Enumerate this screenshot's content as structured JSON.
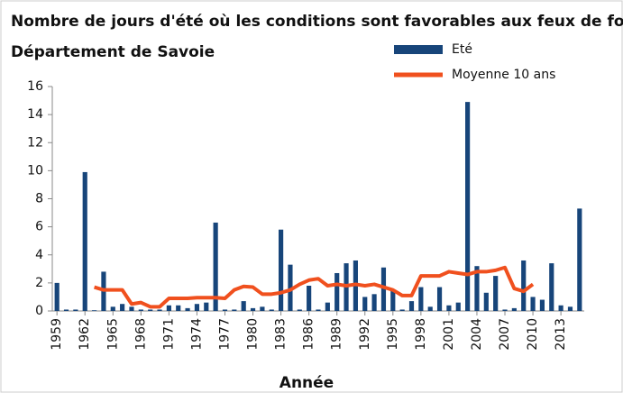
{
  "chart_data": {
    "type": "bar",
    "title": "Nombre de jours d'été où les conditions sont favorables aux feux de forêt",
    "subtitle": "Département de Savoie",
    "xlabel": "Année",
    "x": [
      1959,
      1960,
      1961,
      1962,
      1963,
      1964,
      1965,
      1966,
      1967,
      1968,
      1969,
      1970,
      1971,
      1972,
      1973,
      1974,
      1975,
      1976,
      1977,
      1978,
      1979,
      1980,
      1981,
      1982,
      1983,
      1984,
      1985,
      1986,
      1987,
      1988,
      1989,
      1990,
      1991,
      1992,
      1993,
      1994,
      1995,
      1996,
      1997,
      1998,
      1999,
      2000,
      2001,
      2002,
      2003,
      2004,
      2005,
      2006,
      2007,
      2008,
      2009,
      2010,
      2011,
      2012,
      2013,
      2014,
      2015
    ],
    "series": [
      {
        "name": "Eté",
        "color": "#17457a",
        "values": [
          2.0,
          0.1,
          0.1,
          9.9,
          0.05,
          2.8,
          0.3,
          0.5,
          0.3,
          0.1,
          0.1,
          0.1,
          0.4,
          0.4,
          0.2,
          0.5,
          0.6,
          6.3,
          0.1,
          0.1,
          0.7,
          0.2,
          0.3,
          0.1,
          5.8,
          3.3,
          0.1,
          1.8,
          0.1,
          0.6,
          2.7,
          3.4,
          3.6,
          1.0,
          1.2,
          3.1,
          1.5,
          0.1,
          0.7,
          1.7,
          0.3,
          1.7,
          0.4,
          0.6,
          14.9,
          3.2,
          1.3,
          2.5,
          0.1,
          0.2,
          3.6,
          1.0,
          0.8,
          3.4,
          0.4,
          0.3,
          7.3
        ]
      },
      {
        "name": "Moyenne 10 ans",
        "color": "#f0501e",
        "type": "line",
        "values": [
          null,
          null,
          null,
          null,
          1.7,
          1.5,
          1.5,
          1.5,
          0.5,
          0.6,
          0.3,
          0.3,
          0.9,
          0.9,
          0.9,
          0.95,
          0.95,
          0.95,
          0.9,
          1.5,
          1.75,
          1.7,
          1.2,
          1.2,
          1.3,
          1.5,
          1.9,
          2.2,
          2.3,
          1.8,
          1.9,
          1.8,
          1.9,
          1.8,
          1.9,
          1.7,
          1.5,
          1.1,
          1.1,
          2.5,
          2.5,
          2.5,
          2.8,
          2.7,
          2.6,
          2.8,
          2.8,
          2.9,
          3.1,
          1.6,
          1.4,
          1.9,
          null,
          null,
          null,
          null,
          null
        ]
      }
    ],
    "xlim": [
      1958.5,
      2015.5
    ],
    "xticks": [
      1959,
      1962,
      1965,
      1968,
      1971,
      1974,
      1977,
      1980,
      1983,
      1986,
      1989,
      1992,
      1995,
      1998,
      2001,
      2004,
      2007,
      2010,
      2013
    ],
    "ylim": [
      0,
      16
    ],
    "yticks": [
      0,
      2,
      4,
      6,
      8,
      10,
      12,
      14,
      16
    ],
    "grid": false,
    "legend": "top-right"
  }
}
